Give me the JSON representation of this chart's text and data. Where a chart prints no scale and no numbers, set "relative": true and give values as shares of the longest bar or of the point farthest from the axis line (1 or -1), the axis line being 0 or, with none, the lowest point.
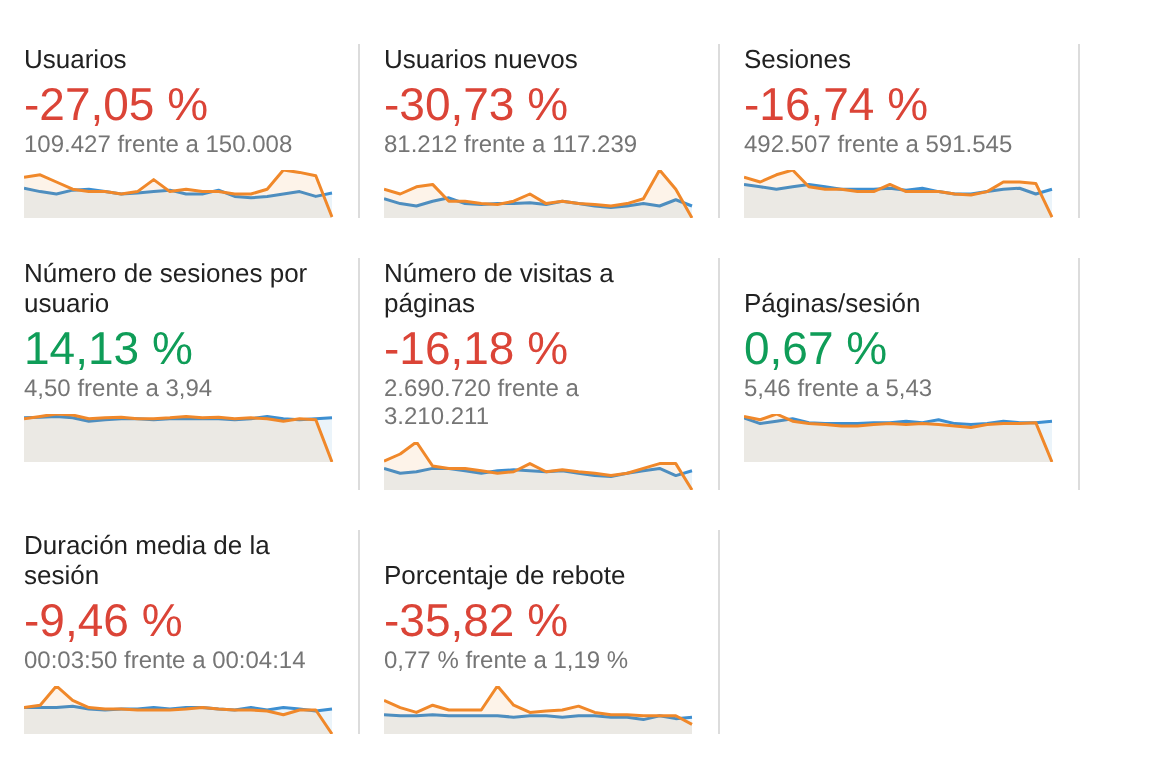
{
  "chart_data": [
    {
      "type": "line",
      "title": "Usuarios",
      "subtitle": "-27,05 %",
      "annotations": [
        "109.427 frente a 150.008"
      ],
      "relative": true,
      "tick_labels": false,
      "categories": [
        null,
        null,
        null,
        null,
        null,
        null,
        null,
        null,
        null,
        null,
        null,
        null,
        null,
        null,
        null,
        null,
        null,
        null,
        null,
        null
      ],
      "series": [
        {
          "type": "area",
          "color": "#f0882a",
          "values": [
            0.85,
            0.9,
            0.75,
            0.6,
            0.55,
            0.55,
            0.5,
            0.55,
            0.8,
            0.55,
            0.6,
            0.55,
            0.55,
            0.5,
            0.5,
            0.6,
            1.0,
            0.95,
            0.88,
            0.02
          ]
        },
        {
          "type": "area",
          "color": "#3d8fd1",
          "values": [
            0.62,
            0.55,
            0.5,
            0.58,
            0.6,
            0.55,
            0.5,
            0.52,
            0.55,
            0.58,
            0.5,
            0.5,
            0.58,
            0.45,
            0.42,
            0.45,
            0.5,
            0.55,
            0.45,
            0.52
          ]
        }
      ]
    },
    {
      "type": "line",
      "title": "Usuarios nuevos",
      "subtitle": "-30,73 %",
      "annotations": [
        "81.212 frente a 117.239"
      ],
      "relative": true,
      "tick_labels": false,
      "categories": [
        null,
        null,
        null,
        null,
        null,
        null,
        null,
        null,
        null,
        null,
        null,
        null,
        null,
        null,
        null,
        null,
        null,
        null,
        null,
        null
      ],
      "series": [
        {
          "type": "area",
          "color": "#f0882a",
          "values": [
            0.6,
            0.5,
            0.65,
            0.7,
            0.35,
            0.35,
            0.3,
            0.28,
            0.35,
            0.5,
            0.3,
            0.35,
            0.3,
            0.28,
            0.25,
            0.3,
            0.4,
            1.0,
            0.6,
            0.0
          ]
        },
        {
          "type": "area",
          "color": "#3d8fd1",
          "values": [
            0.4,
            0.3,
            0.25,
            0.35,
            0.42,
            0.3,
            0.28,
            0.3,
            0.3,
            0.32,
            0.28,
            0.35,
            0.3,
            0.25,
            0.22,
            0.25,
            0.3,
            0.25,
            0.38,
            0.25
          ]
        }
      ]
    },
    {
      "type": "line",
      "title": "Sesiones",
      "subtitle": "-16,74 %",
      "annotations": [
        "492.507 frente a 591.545"
      ],
      "relative": true,
      "tick_labels": false,
      "categories": [
        null,
        null,
        null,
        null,
        null,
        null,
        null,
        null,
        null,
        null,
        null,
        null,
        null,
        null,
        null,
        null,
        null,
        null,
        null,
        null
      ],
      "series": [
        {
          "type": "area",
          "color": "#f0882a",
          "values": [
            0.85,
            0.75,
            0.9,
            1.0,
            0.65,
            0.6,
            0.6,
            0.55,
            0.55,
            0.7,
            0.55,
            0.55,
            0.55,
            0.5,
            0.48,
            0.55,
            0.75,
            0.75,
            0.72,
            0.02
          ]
        },
        {
          "type": "area",
          "color": "#3d8fd1",
          "values": [
            0.7,
            0.65,
            0.6,
            0.65,
            0.7,
            0.65,
            0.6,
            0.6,
            0.6,
            0.62,
            0.58,
            0.62,
            0.55,
            0.5,
            0.5,
            0.55,
            0.6,
            0.62,
            0.5,
            0.6
          ]
        }
      ]
    },
    {
      "type": "line",
      "title": "Número de sesiones por usuario",
      "subtitle": "14,13 %",
      "annotations": [
        "4,50 frente a 3,94"
      ],
      "relative": true,
      "tick_labels": false,
      "categories": [
        null,
        null,
        null,
        null,
        null,
        null,
        null,
        null,
        null,
        null,
        null,
        null,
        null,
        null,
        null,
        null,
        null,
        null,
        null,
        null
      ],
      "series": [
        {
          "type": "area",
          "color": "#f0882a",
          "values": [
            0.9,
            0.95,
            1.0,
            0.98,
            0.9,
            0.92,
            0.93,
            0.9,
            0.9,
            0.92,
            0.95,
            0.92,
            0.93,
            0.9,
            0.92,
            0.9,
            0.85,
            0.9,
            0.88,
            0.0
          ]
        },
        {
          "type": "area",
          "color": "#3d8fd1",
          "values": [
            0.92,
            0.93,
            0.95,
            0.92,
            0.85,
            0.88,
            0.9,
            0.9,
            0.88,
            0.9,
            0.9,
            0.9,
            0.9,
            0.88,
            0.9,
            0.95,
            0.9,
            0.88,
            0.9,
            0.92
          ]
        }
      ]
    },
    {
      "type": "line",
      "title": "Número de visitas a páginas",
      "subtitle": "-16,18 %",
      "annotations": [
        "2.690.720 frente a 3.210.211"
      ],
      "relative": true,
      "tick_labels": false,
      "categories": [
        null,
        null,
        null,
        null,
        null,
        null,
        null,
        null,
        null,
        null,
        null,
        null,
        null,
        null,
        null,
        null,
        null,
        null,
        null,
        null
      ],
      "series": [
        {
          "type": "area",
          "color": "#f0882a",
          "values": [
            0.6,
            0.75,
            1.0,
            0.5,
            0.45,
            0.45,
            0.4,
            0.35,
            0.38,
            0.55,
            0.38,
            0.42,
            0.38,
            0.35,
            0.3,
            0.35,
            0.45,
            0.55,
            0.55,
            0.0
          ]
        },
        {
          "type": "area",
          "color": "#3d8fd1",
          "values": [
            0.45,
            0.35,
            0.38,
            0.45,
            0.45,
            0.4,
            0.35,
            0.4,
            0.42,
            0.4,
            0.38,
            0.4,
            0.35,
            0.3,
            0.28,
            0.35,
            0.4,
            0.45,
            0.3,
            0.4
          ]
        }
      ]
    },
    {
      "type": "line",
      "title": "Páginas/sesión",
      "subtitle": "0,67 %",
      "annotations": [
        "5,46 frente a 5,43"
      ],
      "relative": true,
      "tick_labels": false,
      "categories": [
        null,
        null,
        null,
        null,
        null,
        null,
        null,
        null,
        null,
        null,
        null,
        null,
        null,
        null,
        null,
        null,
        null,
        null,
        null,
        null
      ],
      "series": [
        {
          "type": "area",
          "color": "#f0882a",
          "values": [
            0.95,
            0.88,
            1.0,
            0.85,
            0.8,
            0.78,
            0.75,
            0.75,
            0.78,
            0.8,
            0.78,
            0.8,
            0.78,
            0.75,
            0.72,
            0.78,
            0.8,
            0.8,
            0.82,
            0.0
          ]
        },
        {
          "type": "area",
          "color": "#3d8fd1",
          "values": [
            0.92,
            0.8,
            0.85,
            0.9,
            0.82,
            0.8,
            0.8,
            0.8,
            0.82,
            0.82,
            0.85,
            0.82,
            0.88,
            0.8,
            0.78,
            0.8,
            0.85,
            0.82,
            0.82,
            0.85
          ]
        }
      ]
    },
    {
      "type": "line",
      "title": "Duración media de la sesión",
      "subtitle": "-9,46 %",
      "annotations": [
        "00:03:50 frente a 00:04:14"
      ],
      "relative": true,
      "tick_labels": false,
      "categories": [
        null,
        null,
        null,
        null,
        null,
        null,
        null,
        null,
        null,
        null,
        null,
        null,
        null,
        null,
        null,
        null,
        null,
        null,
        null,
        null
      ],
      "series": [
        {
          "type": "area",
          "color": "#f0882a",
          "values": [
            0.55,
            0.6,
            1.0,
            0.7,
            0.55,
            0.52,
            0.52,
            0.5,
            0.5,
            0.5,
            0.52,
            0.55,
            0.52,
            0.5,
            0.5,
            0.48,
            0.4,
            0.5,
            0.5,
            0.0
          ]
        },
        {
          "type": "area",
          "color": "#3d8fd1",
          "values": [
            0.55,
            0.55,
            0.55,
            0.58,
            0.52,
            0.5,
            0.52,
            0.52,
            0.55,
            0.52,
            0.55,
            0.55,
            0.52,
            0.5,
            0.55,
            0.5,
            0.55,
            0.52,
            0.48,
            0.52
          ]
        }
      ]
    },
    {
      "type": "line",
      "title": "Porcentaje de rebote",
      "subtitle": "-35,82 %",
      "annotations": [
        "0,77 % frente a 1,19 %"
      ],
      "relative": true,
      "tick_labels": false,
      "categories": [
        null,
        null,
        null,
        null,
        null,
        null,
        null,
        null,
        null,
        null,
        null,
        null,
        null,
        null,
        null,
        null,
        null,
        null,
        null,
        null
      ],
      "series": [
        {
          "type": "area",
          "color": "#f0882a",
          "values": [
            0.7,
            0.55,
            0.45,
            0.6,
            0.5,
            0.5,
            0.5,
            1.0,
            0.6,
            0.45,
            0.48,
            0.5,
            0.58,
            0.45,
            0.4,
            0.4,
            0.38,
            0.38,
            0.38,
            0.2
          ]
        },
        {
          "type": "area",
          "color": "#3d8fd1",
          "values": [
            0.4,
            0.38,
            0.38,
            0.4,
            0.38,
            0.38,
            0.38,
            0.38,
            0.35,
            0.38,
            0.38,
            0.35,
            0.38,
            0.38,
            0.35,
            0.35,
            0.3,
            0.38,
            0.32,
            0.35
          ]
        }
      ]
    }
  ]
}
